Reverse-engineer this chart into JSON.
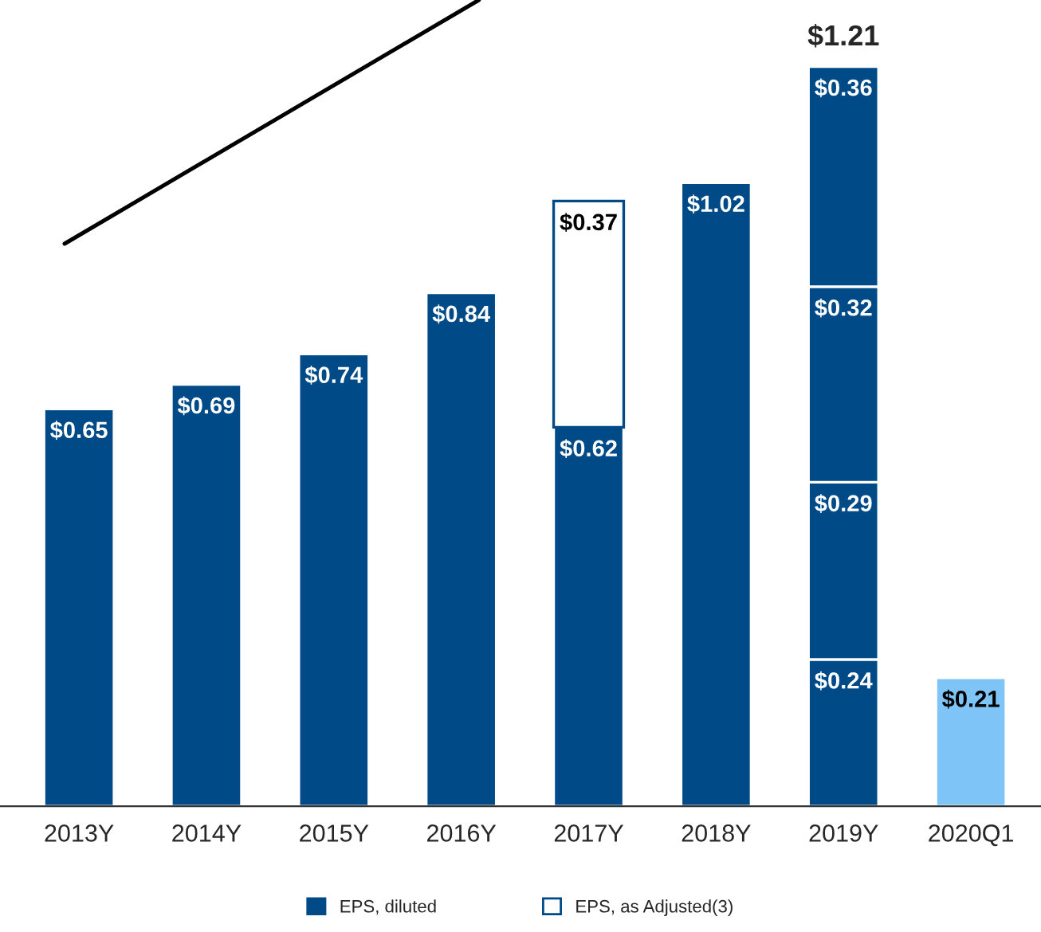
{
  "chart_data": {
    "type": "bar",
    "stacked": true,
    "categories": [
      "2013Y",
      "2014Y",
      "2015Y",
      "2016Y",
      "2017Y",
      "2018Y",
      "2019Y",
      "2020Q1"
    ],
    "series": [
      {
        "name": "EPS, diluted",
        "color": "#004b87",
        "values": [
          0.65,
          0.69,
          0.74,
          0.84,
          0.62,
          1.02,
          0.24,
          null
        ],
        "value_labels": [
          "$0.65",
          "$0.69",
          "$0.74",
          "$0.84",
          "$0.62",
          "$1.02",
          "$0.24",
          null
        ]
      },
      {
        "color": "#004b87",
        "values": [
          null,
          null,
          null,
          null,
          null,
          null,
          0.29,
          null
        ],
        "value_labels": [
          null,
          null,
          null,
          null,
          null,
          null,
          "$0.29",
          null
        ]
      },
      {
        "color": "#004b87",
        "values": [
          null,
          null,
          null,
          null,
          null,
          null,
          0.32,
          null
        ],
        "value_labels": [
          null,
          null,
          null,
          null,
          null,
          null,
          "$0.32",
          null
        ]
      },
      {
        "color": "#004b87",
        "values": [
          null,
          null,
          null,
          null,
          null,
          null,
          0.36,
          null
        ],
        "value_labels": [
          null,
          null,
          null,
          null,
          null,
          null,
          "$0.36",
          null
        ]
      },
      {
        "name": "EPS, as Adjusted(3)",
        "color": "#ffffff",
        "values": [
          null,
          null,
          null,
          null,
          0.37,
          null,
          null,
          null
        ],
        "value_labels": [
          null,
          null,
          null,
          null,
          "$0.37",
          null,
          null,
          null
        ]
      },
      {
        "color": "#7fc4f7",
        "values": [
          null,
          null,
          null,
          null,
          null,
          null,
          null,
          0.21
        ],
        "value_labels": [
          null,
          null,
          null,
          null,
          null,
          null,
          null,
          "$0.21"
        ]
      }
    ],
    "totals": [
      null,
      null,
      null,
      null,
      null,
      null,
      "$1.21",
      null
    ],
    "tick_labels": "x",
    "grid": false,
    "legend": "bottom"
  }
}
